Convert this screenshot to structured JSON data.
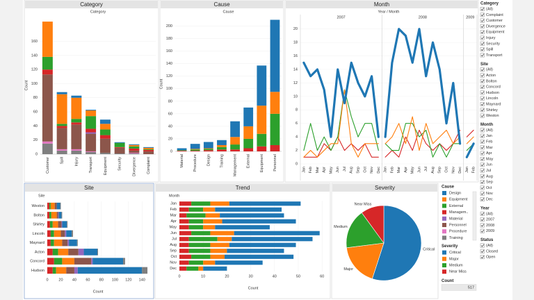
{
  "chart_data": [
    {
      "type": "bar",
      "orientation": "vertical",
      "title": "Category",
      "x_label": "Category",
      "y_label": "Count",
      "legend_title": "Cause",
      "categories": [
        "Customer",
        "Spill",
        "Injury",
        "Transport",
        "Equipment",
        "Security",
        "Divergence",
        "Complaint"
      ],
      "series": [
        {
          "name": "Design",
          "color": "#1f77b4",
          "values": [
            0,
            3,
            3,
            1,
            6,
            1,
            1,
            1
          ]
        },
        {
          "name": "Equipment",
          "color": "#ff7f0e",
          "values": [
            50,
            42,
            30,
            8,
            8,
            0,
            2,
            2
          ]
        },
        {
          "name": "External",
          "color": "#2ca02c",
          "values": [
            18,
            3,
            5,
            18,
            8,
            6,
            3,
            1
          ]
        },
        {
          "name": "Managem..",
          "color": "#d62728",
          "values": [
            7,
            3,
            3,
            5,
            5,
            1,
            3,
            2
          ]
        },
        {
          "name": "Material",
          "color": "#9467bd",
          "values": [
            0,
            0,
            0,
            2,
            0,
            0,
            0,
            0
          ]
        },
        {
          "name": "Personnel",
          "color": "#8c564b",
          "values": [
            95,
            30,
            35,
            25,
            20,
            8,
            3,
            4
          ]
        },
        {
          "name": "Procedure",
          "color": "#e377c2",
          "values": [
            3,
            2,
            2,
            1,
            0,
            0,
            1,
            0
          ]
        },
        {
          "name": "Training",
          "color": "#7f7f7f",
          "values": [
            15,
            5,
            5,
            3,
            2,
            1,
            1,
            0
          ]
        }
      ],
      "ylim": [
        0,
        195
      ],
      "yticks": [
        0,
        20,
        40,
        60,
        80,
        100,
        120,
        140,
        160
      ]
    },
    {
      "type": "bar",
      "orientation": "vertical",
      "title": "Cause",
      "x_label": "Cause",
      "y_label": "Count",
      "legend_title": "Severity",
      "categories": [
        "Material",
        "Procedure",
        "Design",
        "Training",
        "Management",
        "External",
        "Equipment",
        "Personnel"
      ],
      "series": [
        {
          "name": "Critical",
          "color": "#1f77b4",
          "values": [
            3,
            8,
            10,
            8,
            25,
            30,
            64,
            115
          ]
        },
        {
          "name": "Major",
          "color": "#ff7f0e",
          "values": [
            0,
            1,
            1,
            3,
            12,
            20,
            45,
            35
          ]
        },
        {
          "name": "Medium",
          "color": "#2ca02c",
          "values": [
            1,
            2,
            2,
            4,
            8,
            15,
            20,
            50
          ]
        },
        {
          "name": "Near Miss",
          "color": "#d62728",
          "values": [
            1,
            1,
            2,
            3,
            3,
            5,
            8,
            10
          ]
        }
      ],
      "ylim": [
        0,
        215
      ],
      "yticks": [
        0,
        20,
        40,
        60,
        80,
        100,
        120,
        140,
        160,
        180,
        200
      ]
    },
    {
      "type": "line",
      "title": "Month",
      "x_label": "Year / Month",
      "ylim": [
        0,
        21
      ],
      "yticks": [
        0,
        2,
        4,
        6,
        8,
        10,
        12,
        14,
        16,
        18,
        20
      ],
      "facets": [
        {
          "title": "2007",
          "categories": [
            "Jan",
            "Feb",
            "Mar",
            "Apr",
            "May",
            "Jun",
            "Jul",
            "Aug",
            "Sep",
            "Oct",
            "Nov",
            "Dec"
          ],
          "series": [
            {
              "color": "#1f77b4",
              "values": [
                15,
                13,
                14,
                11,
                4,
                14,
                9,
                15,
                12,
                10,
                13,
                4
              ]
            },
            {
              "color": "#ff7f0e",
              "values": [
                1,
                2,
                1,
                2,
                3,
                3,
                11,
                3,
                1,
                3,
                3,
                3
              ]
            },
            {
              "color": "#2ca02c",
              "values": [
                2,
                6,
                2,
                4,
                2,
                4,
                11,
                7,
                4,
                6,
                6,
                2
              ]
            },
            {
              "color": "#d62728",
              "values": [
                1,
                1,
                1,
                3,
                2,
                4,
                2,
                3,
                2,
                3,
                1,
                1
              ]
            }
          ]
        },
        {
          "title": "2008",
          "categories": [
            "Jan",
            "Feb",
            "Mar",
            "Apr",
            "May",
            "Jun",
            "Jul",
            "Aug",
            "Sep",
            "Oct",
            "Nov",
            "Dec"
          ],
          "series": [
            {
              "color": "#1f77b4",
              "values": [
                4,
                15,
                20,
                19,
                15,
                20,
                13,
                18,
                14,
                6,
                12,
                3
              ]
            },
            {
              "color": "#ff7f0e",
              "values": [
                3,
                4,
                6,
                3,
                7,
                2,
                6,
                3,
                4,
                5,
                3,
                4
              ]
            },
            {
              "color": "#2ca02c",
              "values": [
                3,
                2,
                2,
                6,
                6,
                4,
                5,
                1,
                3,
                1,
                3,
                3
              ]
            },
            {
              "color": "#d62728",
              "values": [
                1,
                2,
                1,
                4,
                2,
                5,
                3,
                2,
                3,
                2,
                3,
                5
              ]
            }
          ]
        },
        {
          "title": "2009",
          "categories": [
            "Jan",
            "Feb"
          ],
          "series": [
            {
              "color": "#1f77b4",
              "values": [
                1,
                3
              ]
            },
            {
              "color": "#ff7f0e",
              "values": [
                3,
                4
              ]
            },
            {
              "color": "#2ca02c",
              "values": [
                2,
                3
              ]
            },
            {
              "color": "#d62728",
              "values": [
                4,
                5
              ]
            }
          ]
        }
      ]
    },
    {
      "type": "bar",
      "orientation": "horizontal",
      "title": "Site",
      "y_label": "Site",
      "x_label": "Count",
      "categories": [
        "Weston",
        "Bolton",
        "Shirley",
        "Lincoln",
        "Maynard",
        "Acton",
        "Concord",
        "Hudson"
      ],
      "series": [
        {
          "color": "#d62728",
          "values": [
            3,
            3,
            4,
            5,
            5,
            8,
            10,
            8
          ]
        },
        {
          "color": "#2ca02c",
          "values": [
            2,
            3,
            4,
            5,
            5,
            8,
            12,
            5
          ]
        },
        {
          "color": "#ff7f0e",
          "values": [
            6,
            8,
            8,
            10,
            12,
            15,
            18,
            15
          ]
        },
        {
          "color": "#8c564b",
          "values": [
            3,
            2,
            5,
            6,
            8,
            15,
            25,
            12
          ]
        },
        {
          "color": "#9467bd",
          "values": [
            0,
            1,
            1,
            2,
            2,
            8,
            2,
            5
          ]
        },
        {
          "color": "#1f77b4",
          "values": [
            5,
            4,
            7,
            8,
            12,
            20,
            45,
            95
          ]
        },
        {
          "color": "#7f7f7f",
          "values": [
            1,
            1,
            1,
            2,
            1,
            1,
            3,
            8
          ]
        }
      ],
      "xlim": [
        0,
        150
      ],
      "xticks": [
        0,
        20,
        40,
        60,
        80,
        100,
        120,
        140
      ]
    },
    {
      "type": "bar",
      "orientation": "horizontal",
      "title": "Trend",
      "y_label": "Month",
      "x_label": "Count",
      "categories": [
        "Jan",
        "Feb",
        "Mar",
        "Apr",
        "May",
        "Jun",
        "Jul",
        "Aug",
        "Sep",
        "Oct",
        "Nov",
        "Dec"
      ],
      "series": [
        {
          "color": "#d62728",
          "values": [
            5,
            4,
            3,
            4,
            4,
            5,
            4,
            4,
            4,
            5,
            4,
            3
          ]
        },
        {
          "color": "#2ca02c",
          "values": [
            8,
            6,
            8,
            6,
            6,
            8,
            12,
            9,
            9,
            8,
            6,
            5
          ]
        },
        {
          "color": "#ff7f0e",
          "values": [
            8,
            5,
            6,
            8,
            5,
            10,
            6,
            8,
            7,
            6,
            5,
            2
          ]
        },
        {
          "color": "#1f77b4",
          "values": [
            30,
            28,
            27,
            31,
            23,
            36,
            34,
            28,
            24,
            29,
            20,
            10
          ]
        }
      ],
      "xlim": [
        0,
        62
      ],
      "xticks": [
        0,
        10,
        20,
        30,
        40,
        50,
        60
      ]
    },
    {
      "type": "pie",
      "title": "Severity",
      "categories": [
        "Critical",
        "Major",
        "Medium",
        "Near Miss"
      ],
      "values": [
        55,
        18,
        17,
        10
      ],
      "colors": [
        "#1f77b4",
        "#ff7f0e",
        "#2ca02c",
        "#d62728"
      ]
    }
  ],
  "count_box": {
    "title": "Count",
    "value": 517
  },
  "filters": [
    {
      "title": "Category",
      "items": [
        "(All)",
        "Complaint",
        "Customer",
        "Divergence",
        "Equipment",
        "Injury",
        "Security",
        "Spill",
        "Transport"
      ]
    },
    {
      "title": "Site",
      "items": [
        "(All)",
        "Acton",
        "Bolton",
        "Concord",
        "Hudson",
        "Lincoln",
        "Maynard",
        "Shirley",
        "Weston"
      ]
    },
    {
      "title": "Month",
      "items": [
        "(All)",
        "Jan",
        "Feb",
        "Mar",
        "Apr",
        "May",
        "Jun",
        "Jul",
        "Aug",
        "Sep",
        "Oct",
        "Nov",
        "Dec"
      ]
    },
    {
      "title": "Year",
      "items": [
        "(All)",
        "2007",
        "2008",
        "2009"
      ]
    },
    {
      "title": "Status",
      "items": [
        "(All)",
        "Closed",
        "Open"
      ]
    }
  ]
}
